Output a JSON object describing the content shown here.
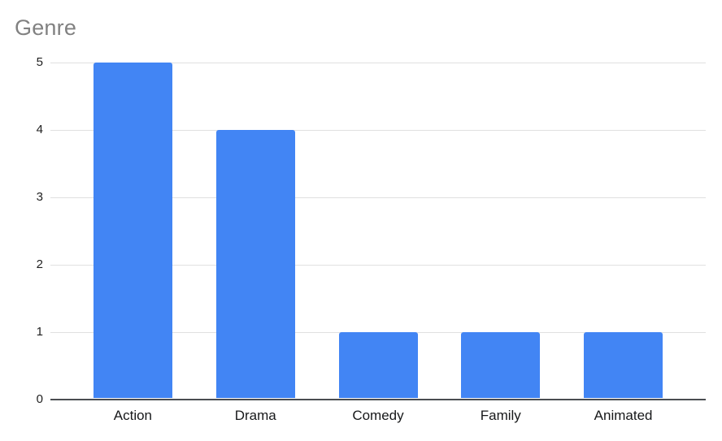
{
  "chart_data": {
    "type": "bar",
    "title": "Genre",
    "categories": [
      "Action",
      "Drama",
      "Comedy",
      "Family",
      "Animated"
    ],
    "values": [
      5,
      4,
      1,
      1,
      1
    ],
    "xlabel": "",
    "ylabel": "",
    "ylim": [
      0,
      5
    ],
    "yticks": [
      0,
      1,
      2,
      3,
      4,
      5
    ],
    "grid": true,
    "legend_position": "none",
    "colors": {
      "bar": "#4285f4",
      "title_text": "#818181",
      "gridline": "#e0e0e0",
      "axis_baseline": "#4a4d51",
      "tick_label": "#1f1f1f",
      "category_label": "#17181a",
      "background": "#ffffff"
    }
  }
}
